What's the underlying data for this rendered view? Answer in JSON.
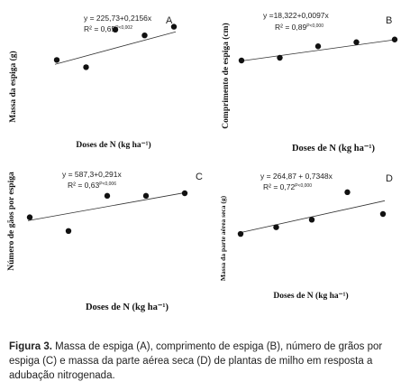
{
  "chart_data": [
    {
      "type": "scatter",
      "panel": "A",
      "equation": "y = 225,73+0,2156x",
      "r2": "R² = 0,65",
      "r2_sig": "P<0,002",
      "xlabel": "Doses de N (kg ha⁻¹)",
      "ylabel": "Massa da espiga (g)",
      "x": [
        1,
        2,
        3,
        4,
        5
      ],
      "y": [
        0.42,
        0.32,
        0.84,
        0.76,
        0.88
      ],
      "trend": [
        0.36,
        0.81
      ]
    },
    {
      "type": "scatter",
      "panel": "B",
      "equation": "y =18,322+0,0097x",
      "r2": "R² = 0,89",
      "r2_sig": "P<0,000",
      "xlabel": "Doses de N (kg ha⁻¹)",
      "ylabel": "Comprimento de espiga (cm)",
      "x": [
        1,
        2,
        3,
        4,
        5
      ],
      "y": [
        0.44,
        0.48,
        0.65,
        0.71,
        0.75
      ],
      "trend": [
        0.43,
        0.75
      ]
    },
    {
      "type": "scatter",
      "panel": "C",
      "equation": "y = 587,3+0,291x",
      "r2": "R² = 0,63",
      "r2_sig": "P<0,006",
      "xlabel": "Doses de N (kg ha⁻¹)",
      "ylabel": "Número de gãos por espiga",
      "x": [
        1,
        2,
        3,
        4,
        5
      ],
      "y": [
        0.52,
        0.36,
        0.77,
        0.77,
        0.8
      ],
      "trend": [
        0.48,
        0.81
      ]
    },
    {
      "type": "scatter",
      "panel": "D",
      "equation": "y = 264,87 + 0,7348x",
      "r2": "R² = 0,72",
      "r2_sig": "P<0,000",
      "xlabel": "Doses de N (kg ha⁻¹)",
      "ylabel": "Massa da parte aérea seca (g)",
      "x": [
        1,
        2,
        3,
        4,
        5
      ],
      "y": [
        0.39,
        0.46,
        0.54,
        0.83,
        0.6
      ],
      "trend": [
        0.4,
        0.74
      ]
    }
  ],
  "caption": {
    "label": "Figura 3.",
    "text": " Massa de espiga (A), comprimento de espiga (B), número de grãos por espiga (C) e massa da parte aérea seca (D) de plantas de milho em resposta a adubação nitrogenada."
  }
}
